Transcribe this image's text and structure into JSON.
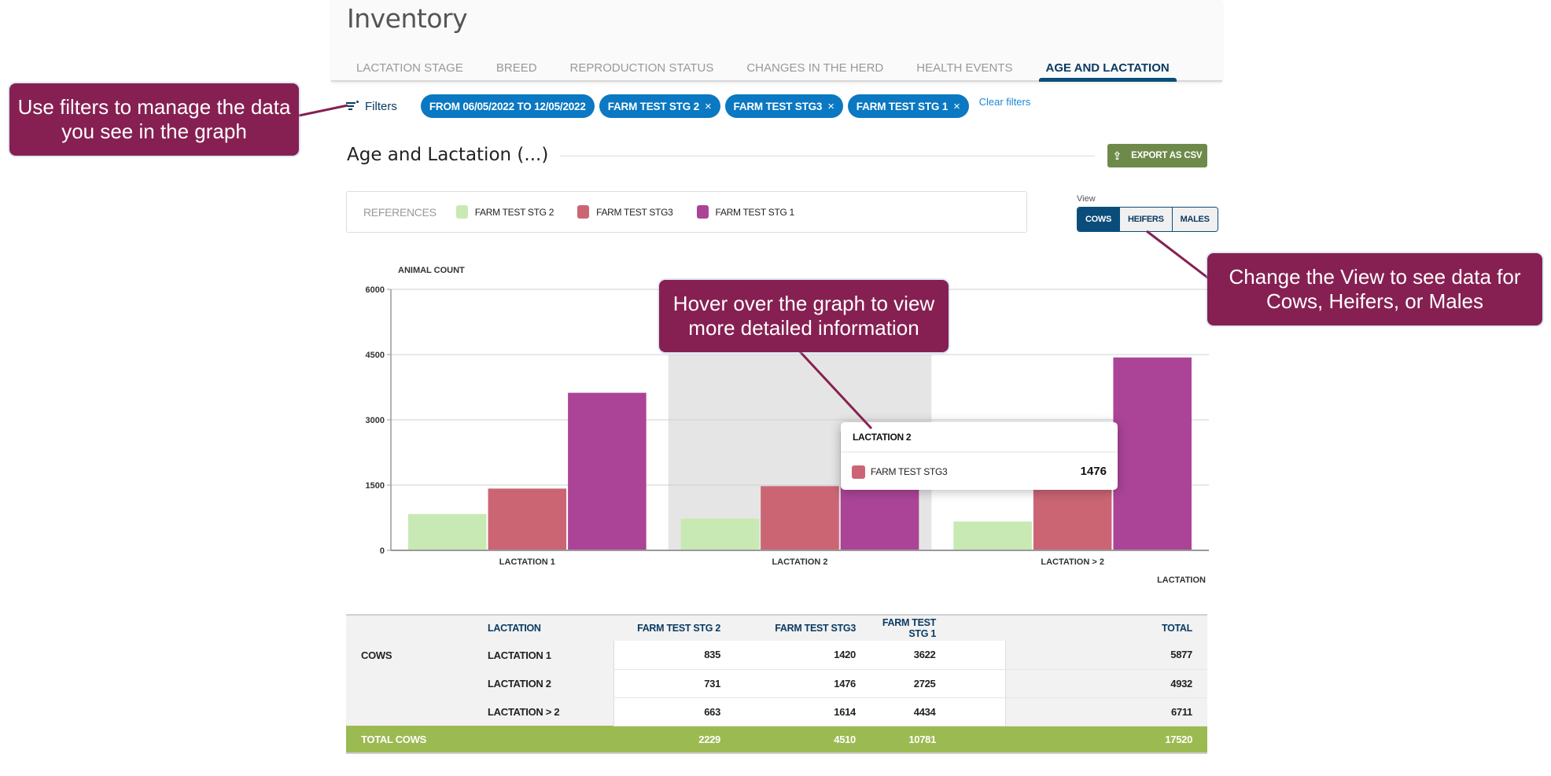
{
  "header": {
    "title": "Inventory",
    "tabs": [
      {
        "label": "LACTATION STAGE",
        "active": false
      },
      {
        "label": "BREED",
        "active": false
      },
      {
        "label": "REPRODUCTION STATUS",
        "active": false
      },
      {
        "label": "CHANGES IN THE HERD",
        "active": false
      },
      {
        "label": "HEALTH EVENTS",
        "active": false
      },
      {
        "label": "AGE AND LACTATION",
        "active": true
      }
    ]
  },
  "filters": {
    "label": "Filters",
    "icon": "filter-icon",
    "chips": [
      {
        "label": "FROM 06/05/2022 TO 12/05/2022",
        "removable": false
      },
      {
        "label": "FARM TEST STG 2",
        "removable": true
      },
      {
        "label": "FARM TEST STG3",
        "removable": true
      },
      {
        "label": "FARM TEST STG 1",
        "removable": true
      }
    ],
    "remove_glyph": "×",
    "clear_label": "Clear filters"
  },
  "section": {
    "title": "Age and Lactation (...)",
    "export_label": "EXPORT AS CSV",
    "export_icon": "upload-icon"
  },
  "legend": {
    "title": "REFERENCES",
    "items": [
      {
        "label": "FARM TEST STG 2",
        "color": "#c8e9b3"
      },
      {
        "label": "FARM TEST STG3",
        "color": "#cb6574"
      },
      {
        "label": "FARM TEST STG 1",
        "color": "#ab4497"
      }
    ]
  },
  "view": {
    "label": "View",
    "options": [
      {
        "label": "COWS",
        "active": true
      },
      {
        "label": "HEIFERS",
        "active": false
      },
      {
        "label": "MALES",
        "active": false
      }
    ]
  },
  "chart_data": {
    "type": "bar",
    "title": "Age and Lactation (...)",
    "xlabel": "LACTATION",
    "ylabel": "ANIMAL COUNT",
    "ylim": [
      0,
      6000
    ],
    "yticks": [
      0,
      1500,
      3000,
      4500,
      6000
    ],
    "grid": true,
    "legend_position": "top",
    "categories": [
      "LACTATION 1",
      "LACTATION 2",
      "LACTATION > 2"
    ],
    "highlighted_category": "LACTATION 2",
    "series": [
      {
        "name": "FARM TEST STG 2",
        "color": "#c8e9b3",
        "values": [
          835,
          731,
          663
        ]
      },
      {
        "name": "FARM TEST STG3",
        "color": "#cb6574",
        "values": [
          1420,
          1476,
          1614
        ]
      },
      {
        "name": "FARM TEST STG 1",
        "color": "#ab4497",
        "values": [
          3622,
          2725,
          4434
        ]
      }
    ]
  },
  "tooltip": {
    "title": "LACTATION 2",
    "series": "FARM TEST STG3",
    "color": "#cb6574",
    "value": "1476"
  },
  "table": {
    "headers": [
      "",
      "LACTATION",
      "FARM TEST STG 2",
      "FARM TEST STG3",
      "FARM TEST STG 1",
      "TOTAL"
    ],
    "group_label": "COWS",
    "rows": [
      {
        "lactation": "LACTATION 1",
        "stg2": "835",
        "stg3": "1420",
        "stg1": "3622",
        "total": "5877"
      },
      {
        "lactation": "LACTATION 2",
        "stg2": "731",
        "stg3": "1476",
        "stg1": "2725",
        "total": "4932"
      },
      {
        "lactation": "LACTATION > 2",
        "stg2": "663",
        "stg3": "1614",
        "stg1": "4434",
        "total": "6711"
      }
    ],
    "total_row": {
      "label": "TOTAL COWS",
      "stg2": "2229",
      "stg3": "4510",
      "stg1": "10781",
      "total": "17520"
    }
  },
  "annotations": [
    {
      "text": "Use filters to manage the data you see in the graph"
    },
    {
      "text": "Hover over the graph to view more detailed information"
    },
    {
      "text": "Change the View to see data for Cows, Heifers, or Males"
    }
  ],
  "colors": {
    "primary": "#0b4d7a",
    "chip": "#0a78c2",
    "export": "#6e8a4a",
    "total_row": "#9cba52",
    "callout": "#862052"
  }
}
